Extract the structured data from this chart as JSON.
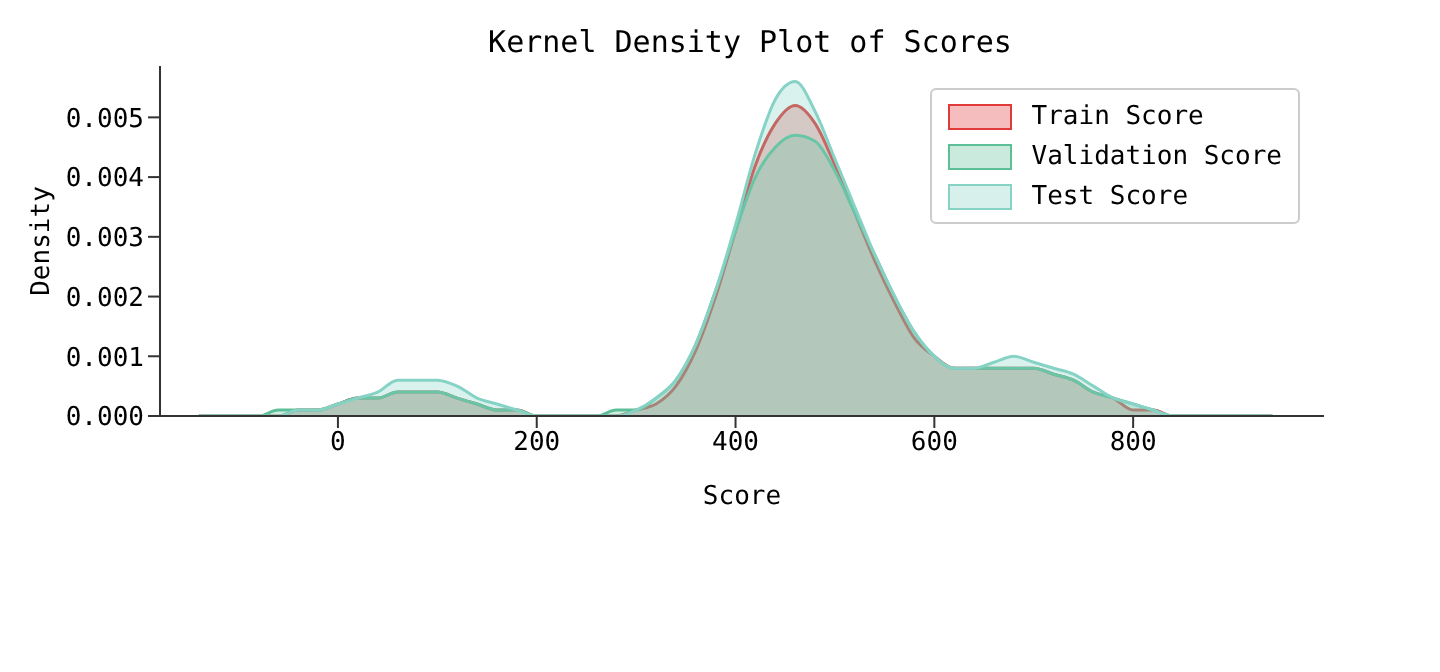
{
  "chart_data": {
    "type": "area",
    "title": "Kernel Density Plot of Scores",
    "xlabel": "Score",
    "ylabel": "Density",
    "x": [
      -140,
      -120,
      -100,
      -80,
      -60,
      -40,
      -20,
      0,
      20,
      40,
      60,
      80,
      100,
      120,
      140,
      160,
      180,
      200,
      220,
      240,
      260,
      280,
      300,
      320,
      340,
      360,
      380,
      400,
      420,
      440,
      460,
      480,
      500,
      520,
      540,
      560,
      580,
      600,
      620,
      640,
      660,
      680,
      700,
      720,
      740,
      760,
      780,
      800,
      820,
      840,
      860,
      880,
      900,
      920,
      940
    ],
    "series": [
      {
        "name": "Train Score",
        "color": "#e03a3a",
        "values": [
          0,
          0,
          0,
          0,
          0,
          0.0001,
          0.0001,
          0.0002,
          0.0003,
          0.0003,
          0.0004,
          0.0004,
          0.0004,
          0.0003,
          0.0002,
          0.0001,
          0.0001,
          0,
          0,
          0,
          0,
          0,
          0.0001,
          0.0002,
          0.0005,
          0.0011,
          0.002,
          0.0031,
          0.0042,
          0.0049,
          0.0052,
          0.0049,
          0.0042,
          0.0034,
          0.0026,
          0.0019,
          0.0013,
          0.001,
          0.0008,
          0.0008,
          0.0008,
          0.0008,
          0.0008,
          0.0007,
          0.0006,
          0.0004,
          0.0003,
          0.0001,
          0.0001,
          0,
          0,
          0,
          0,
          0,
          0
        ]
      },
      {
        "name": "Validation Score",
        "color": "#5cbf98",
        "values": [
          0,
          0,
          0,
          0,
          0.0001,
          0.0001,
          0.0001,
          0.0002,
          0.0003,
          0.0003,
          0.0004,
          0.0004,
          0.0004,
          0.0003,
          0.0002,
          0.0001,
          0.0001,
          0,
          0,
          0,
          0,
          0.0001,
          0.0001,
          0.0003,
          0.0006,
          0.0012,
          0.0021,
          0.0031,
          0.004,
          0.0045,
          0.0047,
          0.0046,
          0.0041,
          0.0034,
          0.0027,
          0.002,
          0.0014,
          0.001,
          0.0008,
          0.0008,
          0.0008,
          0.0008,
          0.0008,
          0.0007,
          0.0006,
          0.0004,
          0.0003,
          0.0002,
          0.0001,
          0,
          0,
          0,
          0,
          0,
          0
        ]
      },
      {
        "name": "Test Score",
        "color": "#86d3c6",
        "values": [
          0,
          0,
          0,
          0,
          0,
          0.0001,
          0.0001,
          0.0002,
          0.0003,
          0.0004,
          0.0006,
          0.0006,
          0.0006,
          0.0005,
          0.0003,
          0.0002,
          0.0001,
          0,
          0,
          0,
          0,
          0,
          0.0001,
          0.0003,
          0.0006,
          0.0012,
          0.0021,
          0.0032,
          0.0044,
          0.0053,
          0.0056,
          0.0051,
          0.0043,
          0.0035,
          0.0027,
          0.002,
          0.0014,
          0.001,
          0.0008,
          0.0008,
          0.0009,
          0.001,
          0.0009,
          0.0008,
          0.0007,
          0.0005,
          0.0003,
          0.0002,
          0.0001,
          0,
          0,
          0,
          0,
          0,
          0
        ]
      }
    ],
    "xlim": [
      -179,
      992
    ],
    "xticks": [
      0,
      200,
      400,
      600,
      800
    ],
    "ylim": [
      0,
      0.00586
    ],
    "yticks": [
      {
        "value": 0,
        "label": "0.000"
      },
      {
        "value": 0.001,
        "label": "0.001"
      },
      {
        "value": 0.002,
        "label": "0.002"
      },
      {
        "value": 0.003,
        "label": "0.003"
      },
      {
        "value": 0.004,
        "label": "0.004"
      },
      {
        "value": 0.005,
        "label": "0.005"
      }
    ],
    "legend": "top right",
    "grid": false
  }
}
